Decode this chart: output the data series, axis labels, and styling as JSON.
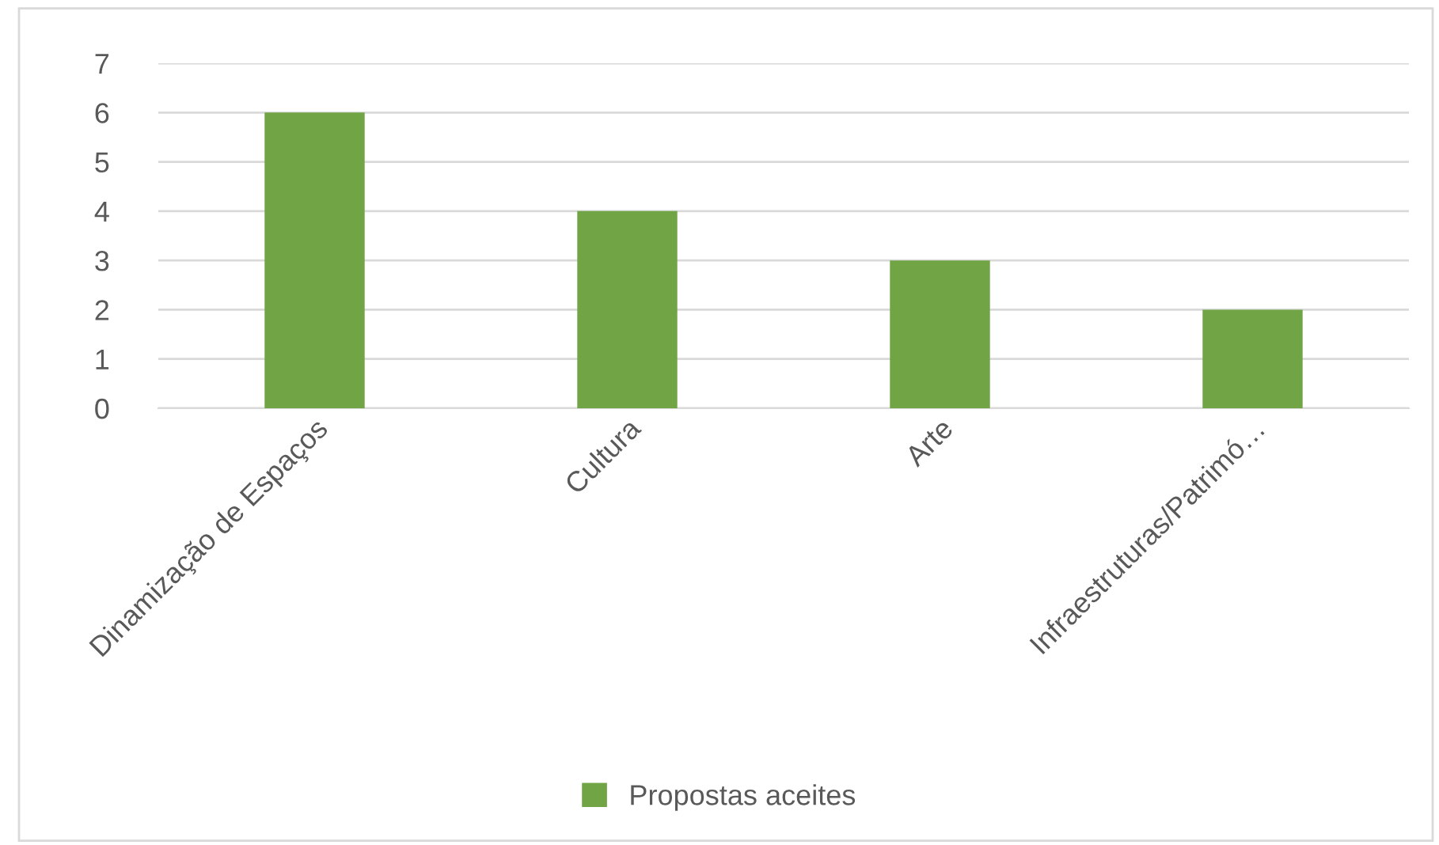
{
  "chart_data": {
    "type": "bar",
    "categories": [
      "Dinamização de Espaços",
      "Cultura",
      "Arte",
      "Infraestruturas/Patrimó…"
    ],
    "series": [
      {
        "name": "Propostas aceites",
        "color": "#70a444",
        "values": [
          6,
          4,
          3,
          2
        ]
      }
    ],
    "ylim": [
      0,
      7
    ],
    "yticks": [
      0,
      1,
      2,
      3,
      4,
      5,
      6,
      7
    ],
    "grid": "y",
    "legend": "bottom"
  }
}
